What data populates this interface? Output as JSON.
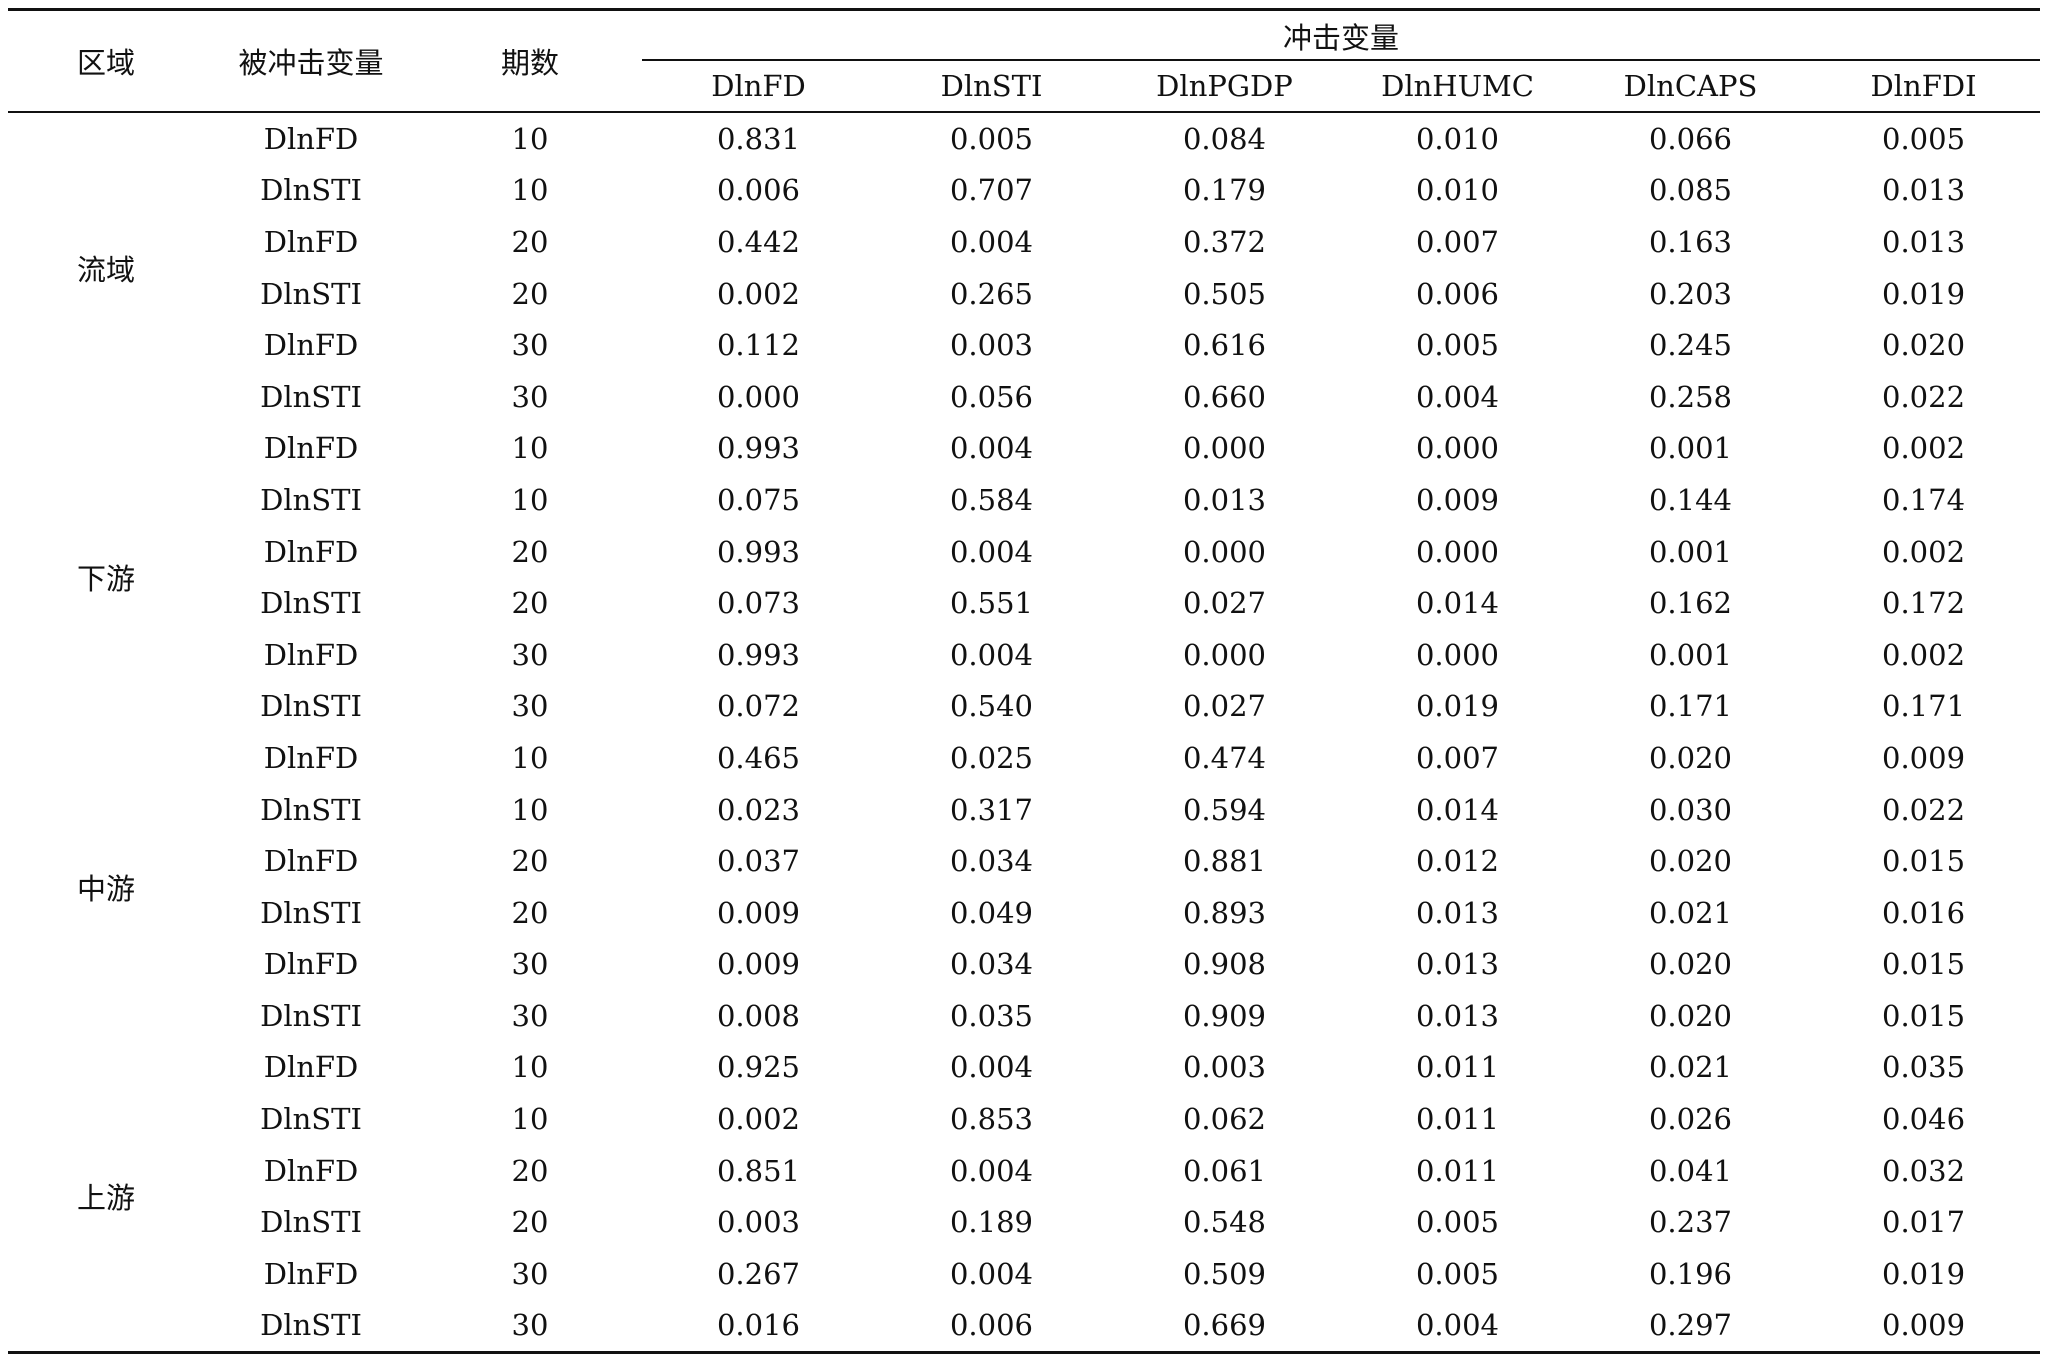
{
  "header": {
    "region": "区域",
    "shocked": "被冲击变量",
    "period": "期数",
    "shock_group": "冲击变量",
    "shock_vars": [
      "DlnFD",
      "DlnSTI",
      "DlnPGDP",
      "DlnHUMC",
      "DlnCAPS",
      "DlnFDI"
    ]
  },
  "regions": [
    {
      "name": "流域",
      "rows": [
        {
          "var": "DlnFD",
          "period": "10",
          "values": [
            "0.831",
            "0.005",
            "0.084",
            "0.010",
            "0.066",
            "0.005"
          ]
        },
        {
          "var": "DlnSTI",
          "period": "10",
          "values": [
            "0.006",
            "0.707",
            "0.179",
            "0.010",
            "0.085",
            "0.013"
          ]
        },
        {
          "var": "DlnFD",
          "period": "20",
          "values": [
            "0.442",
            "0.004",
            "0.372",
            "0.007",
            "0.163",
            "0.013"
          ]
        },
        {
          "var": "DlnSTI",
          "period": "20",
          "values": [
            "0.002",
            "0.265",
            "0.505",
            "0.006",
            "0.203",
            "0.019"
          ]
        },
        {
          "var": "DlnFD",
          "period": "30",
          "values": [
            "0.112",
            "0.003",
            "0.616",
            "0.005",
            "0.245",
            "0.020"
          ]
        },
        {
          "var": "DlnSTI",
          "period": "30",
          "values": [
            "0.000",
            "0.056",
            "0.660",
            "0.004",
            "0.258",
            "0.022"
          ]
        }
      ]
    },
    {
      "name": "下游",
      "rows": [
        {
          "var": "DlnFD",
          "period": "10",
          "values": [
            "0.993",
            "0.004",
            "0.000",
            "0.000",
            "0.001",
            "0.002"
          ]
        },
        {
          "var": "DlnSTI",
          "period": "10",
          "values": [
            "0.075",
            "0.584",
            "0.013",
            "0.009",
            "0.144",
            "0.174"
          ]
        },
        {
          "var": "DlnFD",
          "period": "20",
          "values": [
            "0.993",
            "0.004",
            "0.000",
            "0.000",
            "0.001",
            "0.002"
          ]
        },
        {
          "var": "DlnSTI",
          "period": "20",
          "values": [
            "0.073",
            "0.551",
            "0.027",
            "0.014",
            "0.162",
            "0.172"
          ]
        },
        {
          "var": "DlnFD",
          "period": "30",
          "values": [
            "0.993",
            "0.004",
            "0.000",
            "0.000",
            "0.001",
            "0.002"
          ]
        },
        {
          "var": "DlnSTI",
          "period": "30",
          "values": [
            "0.072",
            "0.540",
            "0.027",
            "0.019",
            "0.171",
            "0.171"
          ]
        }
      ]
    },
    {
      "name": "中游",
      "rows": [
        {
          "var": "DlnFD",
          "period": "10",
          "values": [
            "0.465",
            "0.025",
            "0.474",
            "0.007",
            "0.020",
            "0.009"
          ]
        },
        {
          "var": "DlnSTI",
          "period": "10",
          "values": [
            "0.023",
            "0.317",
            "0.594",
            "0.014",
            "0.030",
            "0.022"
          ]
        },
        {
          "var": "DlnFD",
          "period": "20",
          "values": [
            "0.037",
            "0.034",
            "0.881",
            "0.012",
            "0.020",
            "0.015"
          ]
        },
        {
          "var": "DlnSTI",
          "period": "20",
          "values": [
            "0.009",
            "0.049",
            "0.893",
            "0.013",
            "0.021",
            "0.016"
          ]
        },
        {
          "var": "DlnFD",
          "period": "30",
          "values": [
            "0.009",
            "0.034",
            "0.908",
            "0.013",
            "0.020",
            "0.015"
          ]
        },
        {
          "var": "DlnSTI",
          "period": "30",
          "values": [
            "0.008",
            "0.035",
            "0.909",
            "0.013",
            "0.020",
            "0.015"
          ]
        }
      ]
    },
    {
      "name": "上游",
      "rows": [
        {
          "var": "DlnFD",
          "period": "10",
          "values": [
            "0.925",
            "0.004",
            "0.003",
            "0.011",
            "0.021",
            "0.035"
          ]
        },
        {
          "var": "DlnSTI",
          "period": "10",
          "values": [
            "0.002",
            "0.853",
            "0.062",
            "0.011",
            "0.026",
            "0.046"
          ]
        },
        {
          "var": "DlnFD",
          "period": "20",
          "values": [
            "0.851",
            "0.004",
            "0.061",
            "0.011",
            "0.041",
            "0.032"
          ]
        },
        {
          "var": "DlnSTI",
          "period": "20",
          "values": [
            "0.003",
            "0.189",
            "0.548",
            "0.005",
            "0.237",
            "0.017"
          ]
        },
        {
          "var": "DlnFD",
          "period": "30",
          "values": [
            "0.267",
            "0.004",
            "0.509",
            "0.005",
            "0.196",
            "0.019"
          ]
        },
        {
          "var": "DlnSTI",
          "period": "30",
          "values": [
            "0.016",
            "0.006",
            "0.669",
            "0.004",
            "0.297",
            "0.009"
          ]
        }
      ]
    }
  ]
}
